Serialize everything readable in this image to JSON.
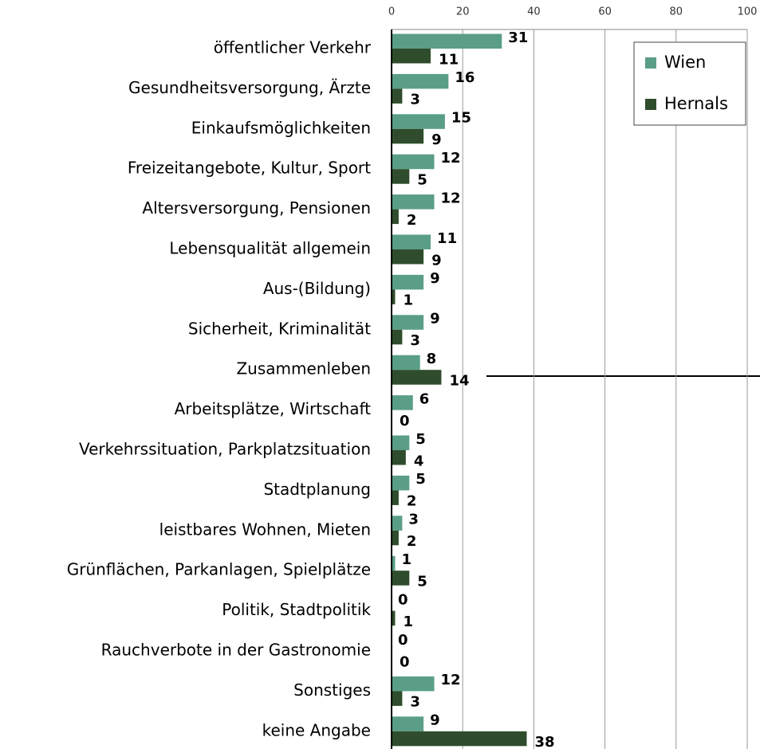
{
  "chart_data": {
    "type": "bar",
    "orientation": "horizontal",
    "categories": [
      "öffentlicher Verkehr",
      "Gesundheitsversorgung, Ärzte",
      "Einkaufsmöglichkeiten",
      "Freizeitangebote, Kultur, Sport",
      "Altersversorgung, Pensionen",
      "Lebensqualität allgemein",
      "Aus-(Bildung)",
      "Sicherheit, Kriminalität",
      "Zusammenleben",
      "Arbeitsplätze, Wirtschaft",
      "Verkehrssituation, Parkplatzsituation",
      "Stadtplanung",
      "leistbares Wohnen, Mieten",
      "Grünflächen, Parkanlagen, Spielplätze",
      "Politik, Stadtpolitik",
      "Rauchverbote in der Gastronomie",
      "Sonstiges",
      "keine Angabe"
    ],
    "series": [
      {
        "name": "Wien",
        "color": "#5a9e87",
        "values": [
          31,
          16,
          15,
          12,
          12,
          11,
          9,
          9,
          8,
          6,
          5,
          5,
          3,
          1,
          0,
          0,
          12,
          9
        ]
      },
      {
        "name": "Hernals",
        "color": "#2f4d2c",
        "values": [
          11,
          3,
          9,
          5,
          2,
          9,
          1,
          3,
          14,
          0,
          4,
          2,
          2,
          5,
          1,
          0,
          3,
          38
        ]
      }
    ],
    "xlim": [
      0,
      100
    ],
    "xticks": [
      0,
      20,
      40,
      60,
      80,
      100
    ],
    "grid": true,
    "legend": "top-right"
  }
}
